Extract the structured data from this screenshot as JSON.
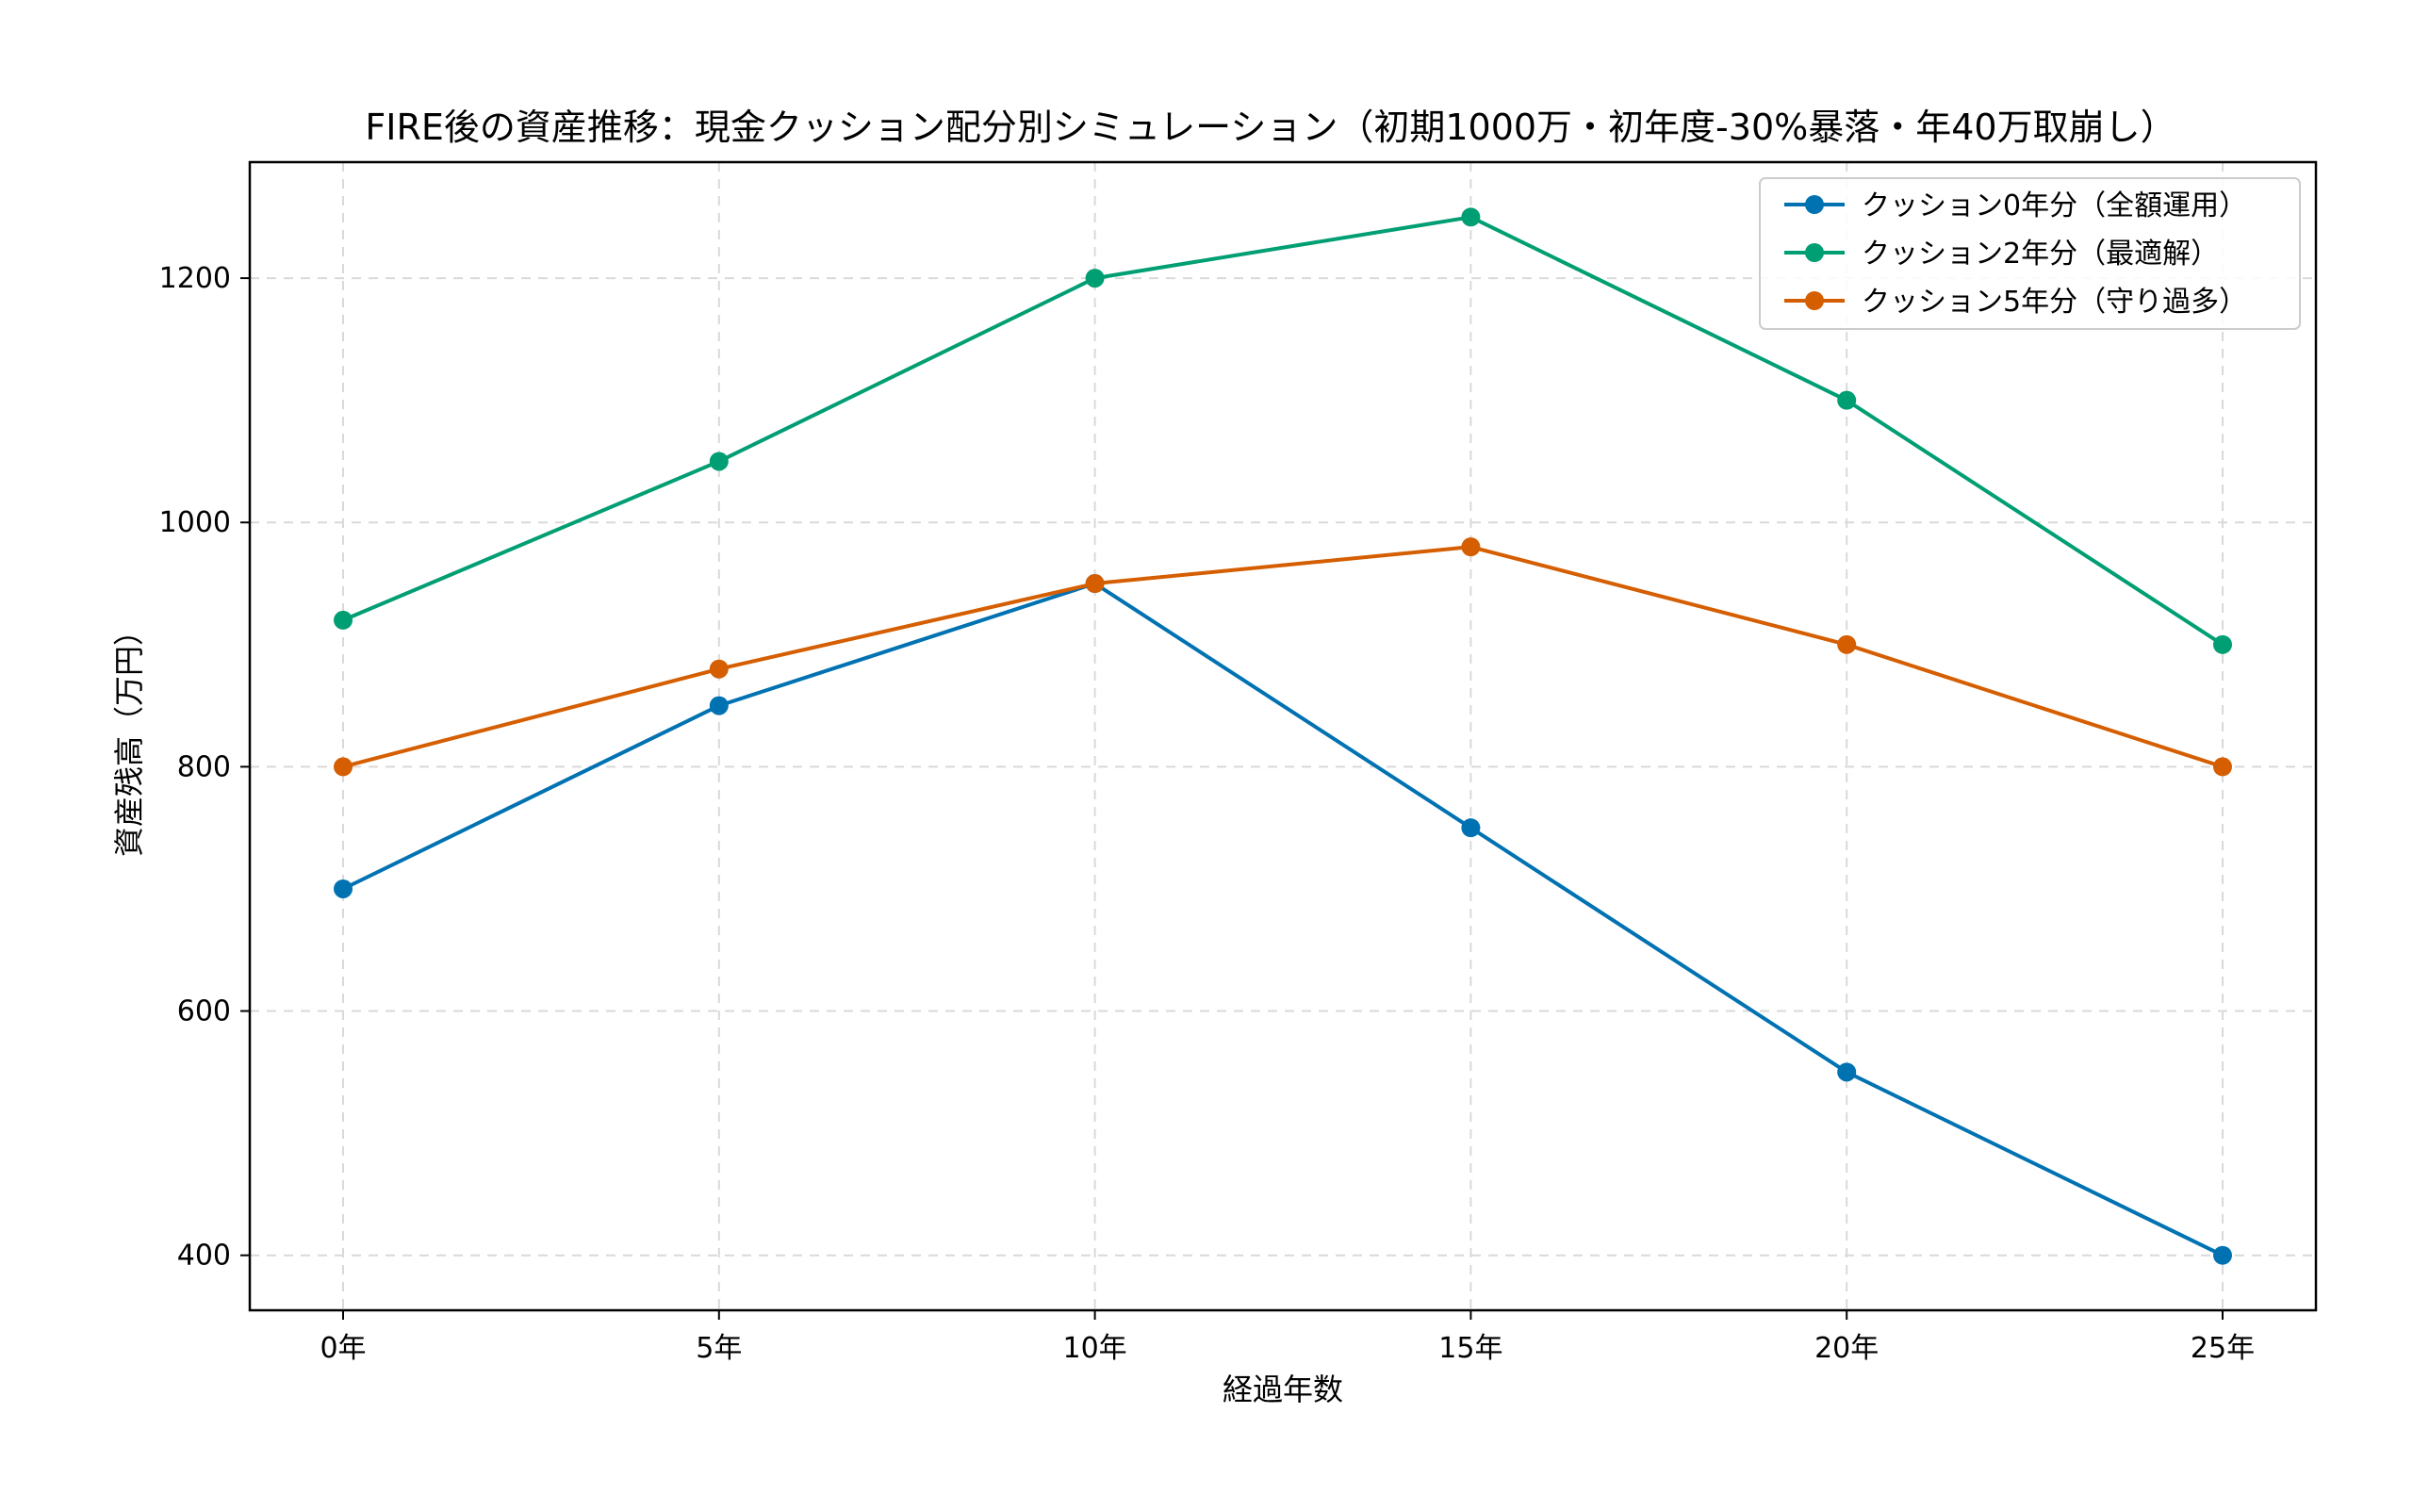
{
  "chart_data": {
    "type": "line",
    "title": "FIRE後の資産推移：現金クッション配分別シミュレーション（初期1000万・初年度-30%暴落・年40万取崩し）",
    "xlabel": "経過年数",
    "ylabel": "資産残高（万円）",
    "categories": [
      "0年",
      "5年",
      "10年",
      "15年",
      "20年",
      "25年"
    ],
    "yticks": [
      400,
      600,
      800,
      1000,
      1200
    ],
    "ylim": [
      355,
      1295
    ],
    "grid": true,
    "legend_position": "top-right",
    "series": [
      {
        "name": "クッション0年分（全額運用）",
        "color": "#0072B2",
        "values": [
          700,
          850,
          950,
          750,
          550,
          400
        ]
      },
      {
        "name": "クッション2年分（最適解）",
        "color": "#009E73",
        "values": [
          920,
          1050,
          1200,
          1250,
          1100,
          900
        ]
      },
      {
        "name": "クッション5年分（守り過多）",
        "color": "#D55E00",
        "values": [
          800,
          880,
          950,
          980,
          900,
          800
        ]
      }
    ]
  }
}
